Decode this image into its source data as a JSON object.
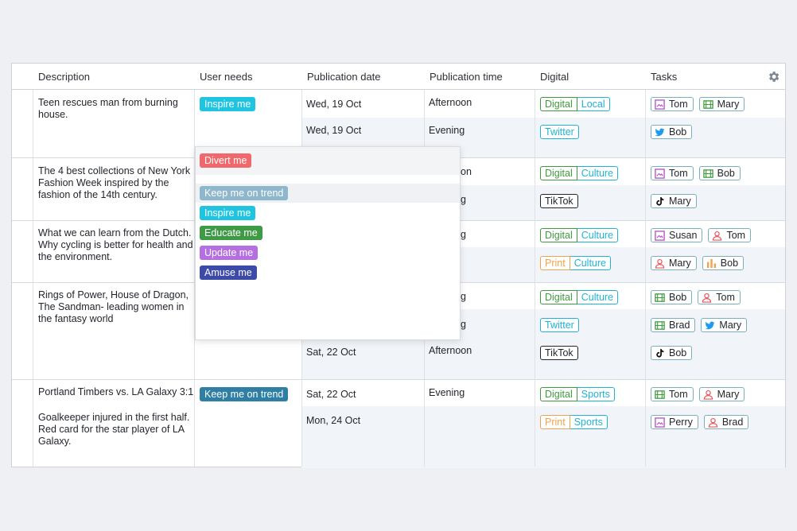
{
  "header": {
    "description": "Description",
    "user_needs": "User needs",
    "publication_date": "Publication  date",
    "publication_time": "Publication time",
    "digital": "Digital",
    "tasks": "Tasks",
    "settings_icon": "gear-icon"
  },
  "rows": [
    {
      "description": "Teen rescues man from burning house.",
      "user_need": "Inspire me",
      "subrows": [
        {
          "date": "Wed, 19 Oct",
          "time": "Afternoon",
          "digital": [
            "Digital",
            "Local"
          ],
          "tasks": [
            {
              "icon": "image-icon",
              "name": "Tom"
            },
            {
              "icon": "film-icon",
              "name": "Mary"
            }
          ]
        },
        {
          "date": "Wed, 19 Oct",
          "time": "Evening",
          "digital": [
            "Twitter"
          ],
          "tasks": [
            {
              "icon": "twitter-icon",
              "name": "Bob"
            }
          ]
        }
      ]
    },
    {
      "description": "The 4 best collections of New York Fashion Week inspired by the fashion of the 14th century.",
      "subrows": [
        {
          "time_fragment": "on",
          "digital": [
            "Digital",
            "Culture"
          ],
          "tasks": [
            {
              "icon": "image-icon",
              "name": "Tom"
            },
            {
              "icon": "film-icon",
              "name": "Bob"
            }
          ]
        },
        {
          "time_fragment": "g",
          "digital": [
            "TikTok"
          ],
          "tasks": [
            {
              "icon": "tiktok-icon",
              "name": "Mary"
            }
          ]
        }
      ]
    },
    {
      "description": "What we can learn from the Dutch. Why cycling is better for health and the environment.",
      "subrows": [
        {
          "time_fragment": "g",
          "digital": [
            "Digital",
            "Culture"
          ],
          "tasks": [
            {
              "icon": "image-icon",
              "name": "Susan"
            },
            {
              "icon": "person-icon",
              "name": "Tom"
            }
          ]
        },
        {
          "digital": [
            "Print",
            "Culture"
          ],
          "tasks": [
            {
              "icon": "person-icon",
              "name": "Mary"
            },
            {
              "icon": "bar-chart-icon",
              "name": "Bob"
            }
          ]
        }
      ]
    },
    {
      "description": "Rings of Power, House of Dragon, The Sandman- leading women in the fantasy world",
      "subrows": [
        {
          "time_fragment": "g",
          "digital": [
            "Digital",
            "Culture"
          ],
          "tasks": [
            {
              "icon": "film-icon",
              "name": "Bob"
            },
            {
              "icon": "person-icon",
              "name": "Tom"
            }
          ]
        },
        {
          "time_fragment": "g",
          "digital": [
            "Twitter"
          ],
          "tasks": [
            {
              "icon": "film-icon",
              "name": "Brad"
            },
            {
              "icon": "twitter-icon",
              "name": "Mary"
            }
          ]
        },
        {
          "date": "Sat, 22 Oct",
          "time": "Afternoon",
          "digital": [
            "TikTok"
          ],
          "tasks": [
            {
              "icon": "tiktok-icon",
              "name": "Bob"
            }
          ]
        }
      ]
    },
    {
      "description_line1": "Portland Timbers vs. LA Galaxy 3:1",
      "description_line2": "Goalkeeper injured in the first half. Red card for the star player of LA Galaxy.",
      "user_need": "Keep me on trend",
      "subrows": [
        {
          "date": "Sat, 22 Oct",
          "time": "Evening",
          "digital": [
            "Digital",
            "Sports"
          ],
          "tasks": [
            {
              "icon": "film-icon",
              "name": "Tom"
            },
            {
              "icon": "person-icon",
              "name": "Mary"
            }
          ]
        },
        {
          "date": "Mon, 24 Oct",
          "digital": [
            "Print",
            "Sports"
          ],
          "tasks": [
            {
              "icon": "image-icon",
              "name": "Perry"
            },
            {
              "icon": "person-icon",
              "name": "Brad"
            }
          ]
        }
      ]
    }
  ],
  "dropdown": {
    "selected": "Divert me",
    "options": [
      "Keep me on trend",
      "Inspire me",
      "Educate me",
      "Update me",
      "Amuse me"
    ]
  },
  "colors": {
    "divert": "#f0686b",
    "keep": "#8fb7cb",
    "keep_dark": "#2e7fa3",
    "inspire": "#1fc4e0",
    "educate": "#3f9a45",
    "update": "#b56fe0",
    "amuse": "#3c4aa8"
  }
}
